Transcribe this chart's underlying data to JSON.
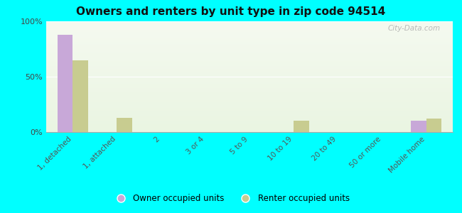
{
  "title": "Owners and renters by unit type in zip code 94514",
  "categories": [
    "1, detached",
    "1, attached",
    "2",
    "3 or 4",
    "5 to 9",
    "10 to 19",
    "20 to 49",
    "50 or more",
    "Mobile home"
  ],
  "owner_values": [
    88,
    0,
    0,
    0,
    0,
    0,
    0,
    0,
    10
  ],
  "renter_values": [
    65,
    13,
    0,
    0,
    0,
    10,
    0,
    0,
    12
  ],
  "owner_color": "#c8a8d8",
  "renter_color": "#c8cc90",
  "background_color": "#00ffff",
  "plot_bg_top": "#eaf5e2",
  "plot_bg_bottom": "#f5faf0",
  "ylim": [
    0,
    100
  ],
  "yticks": [
    0,
    50,
    100
  ],
  "ytick_labels": [
    "0%",
    "50%",
    "100%"
  ],
  "bar_width": 0.35,
  "legend_owner": "Owner occupied units",
  "legend_renter": "Renter occupied units",
  "watermark": "City-Data.com"
}
